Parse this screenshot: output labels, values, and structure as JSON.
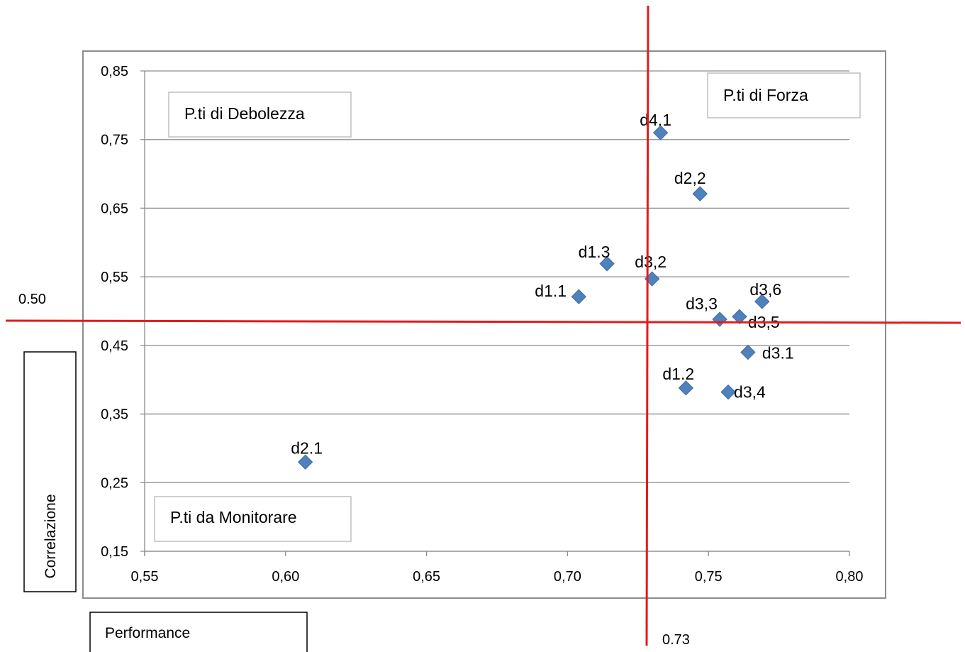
{
  "chart_data": {
    "type": "scatter",
    "xlabel": "Performance",
    "ylabel": "Correlazione",
    "xlim": [
      0.55,
      0.8
    ],
    "ylim": [
      0.15,
      0.85
    ],
    "x_ticks": [
      "0,55",
      "0,60",
      "0,65",
      "0,70",
      "0,75",
      "0,80"
    ],
    "y_ticks": [
      "0,85",
      "0,75",
      "0,65",
      "0,55",
      "0,45",
      "0,35",
      "0,25",
      "0,15"
    ],
    "grid": "horizontal",
    "marker": "diamond",
    "marker_color": "#4f81bd",
    "points": [
      {
        "label": "d4.1",
        "x": 0.733,
        "y": 0.76
      },
      {
        "label": "d2,2",
        "x": 0.747,
        "y": 0.671
      },
      {
        "label": "d1.3",
        "x": 0.714,
        "y": 0.569
      },
      {
        "label": "d3,2",
        "x": 0.73,
        "y": 0.547
      },
      {
        "label": "d1.1",
        "x": 0.704,
        "y": 0.521
      },
      {
        "label": "d3,6",
        "x": 0.769,
        "y": 0.514
      },
      {
        "label": "d3,3",
        "x": 0.754,
        "y": 0.488
      },
      {
        "label": "d3,5",
        "x": 0.761,
        "y": 0.492
      },
      {
        "label": "d3.1",
        "x": 0.764,
        "y": 0.44
      },
      {
        "label": "d1.2",
        "x": 0.742,
        "y": 0.388
      },
      {
        "label": "d3,4",
        "x": 0.757,
        "y": 0.382
      },
      {
        "label": "d2.1",
        "x": 0.607,
        "y": 0.28
      }
    ],
    "reference_lines": {
      "color": "#e31b1b",
      "vertical": {
        "label": "0.73",
        "value": 0.73
      },
      "horizontal": {
        "label": "0.50",
        "value": 0.5
      }
    },
    "quadrant_labels": {
      "strength": "P.ti di Forza",
      "weakness": "P.ti di Debolezza",
      "monitor": "P.ti da Monitorare"
    }
  }
}
